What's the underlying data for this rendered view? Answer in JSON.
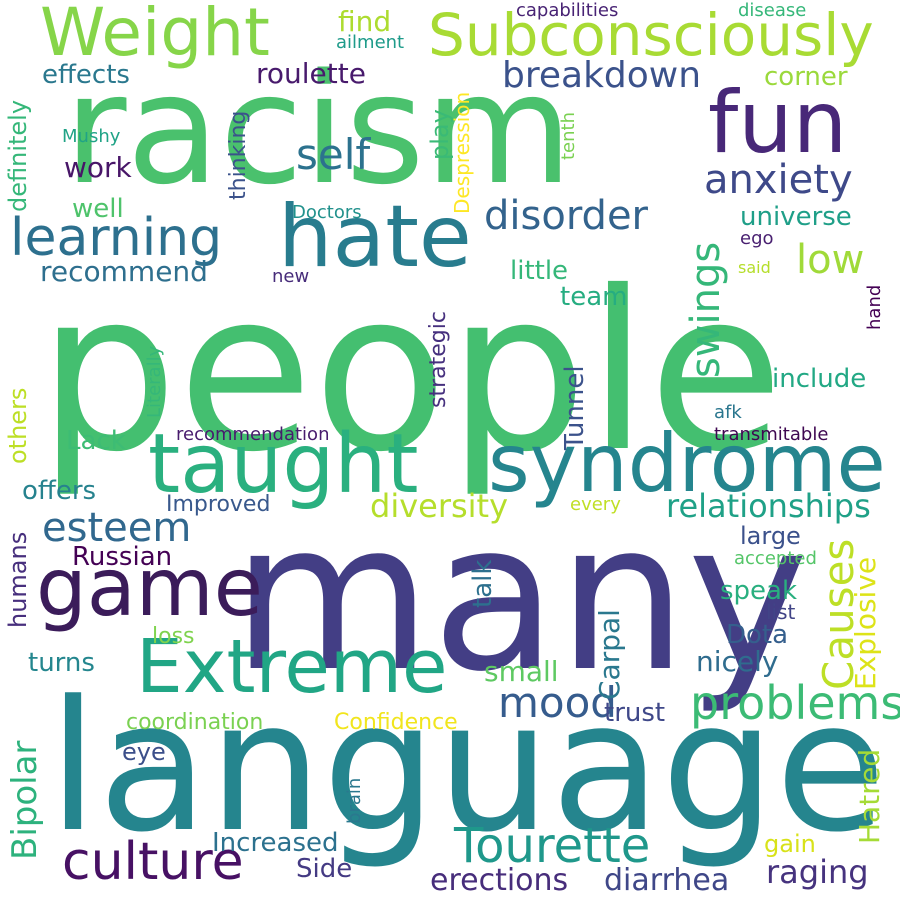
{
  "words": [
    {
      "id": "people",
      "text": "people",
      "color": "#44bf70"
    },
    {
      "id": "many",
      "text": "many",
      "color": "#433e85"
    },
    {
      "id": "language",
      "text": "language",
      "color": "#25858e"
    },
    {
      "id": "racism",
      "text": "racism",
      "color": "#4ac16d"
    },
    {
      "id": "syndrome",
      "text": "syndrome",
      "color": "#25858e"
    },
    {
      "id": "taught",
      "text": "taught",
      "color": "#2ab07f"
    },
    {
      "id": "hate",
      "text": "hate",
      "color": "#287c8e"
    },
    {
      "id": "fun",
      "text": "fun",
      "color": "#482878"
    },
    {
      "id": "game",
      "text": "game",
      "color": "#3b1c5a"
    },
    {
      "id": "extreme",
      "text": "Extreme",
      "color": "#21a685"
    },
    {
      "id": "weight",
      "text": "Weight",
      "color": "#86d549"
    },
    {
      "id": "subconsciously",
      "text": "Subconsciously",
      "color": "#a8db34"
    },
    {
      "id": "learning",
      "text": "learning",
      "color": "#2d708e"
    },
    {
      "id": "culture",
      "text": "culture",
      "color": "#471164"
    },
    {
      "id": "tourette",
      "text": "Tourette",
      "color": "#1f988b"
    },
    {
      "id": "problems",
      "text": "problems",
      "color": "#3cbb75"
    },
    {
      "id": "disorder",
      "text": "disorder",
      "color": "#33638d"
    },
    {
      "id": "anxiety",
      "text": "anxiety",
      "color": "#3e4989"
    },
    {
      "id": "breakdown",
      "text": "breakdown",
      "color": "#3b528b"
    },
    {
      "id": "self",
      "text": "self",
      "color": "#2c728e"
    },
    {
      "id": "esteem",
      "text": "esteem",
      "color": "#31688e"
    },
    {
      "id": "mood",
      "text": "mood",
      "color": "#365c8d"
    },
    {
      "id": "relationships",
      "text": "relationships",
      "color": "#1fa187"
    },
    {
      "id": "diversity",
      "text": "diversity",
      "color": "#b5de2b"
    },
    {
      "id": "low",
      "text": "low",
      "color": "#a0da39"
    },
    {
      "id": "roulette",
      "text": "roulette",
      "color": "#481a6c"
    },
    {
      "id": "erections",
      "text": "erections",
      "color": "#472d7b"
    },
    {
      "id": "diarrhea",
      "text": "diarrhea",
      "color": "#3f4788"
    },
    {
      "id": "raging",
      "text": "raging",
      "color": "#46337e"
    },
    {
      "id": "russian",
      "text": "Russian",
      "color": "#440154"
    },
    {
      "id": "effects",
      "text": "effects",
      "color": "#2a788e"
    },
    {
      "id": "recommend",
      "text": "recommend",
      "color": "#2e6f8e"
    },
    {
      "id": "work",
      "text": "work",
      "color": "#481668"
    },
    {
      "id": "well",
      "text": "well",
      "color": "#4ec36b"
    },
    {
      "id": "find",
      "text": "find",
      "color": "#addc30"
    },
    {
      "id": "corner",
      "text": "corner",
      "color": "#9bd93c"
    },
    {
      "id": "universe",
      "text": "universe",
      "color": "#1f9f88"
    },
    {
      "id": "include",
      "text": "include",
      "color": "#22a884"
    },
    {
      "id": "little",
      "text": "little",
      "color": "#35b779"
    },
    {
      "id": "team",
      "text": "team",
      "color": "#26ad81"
    },
    {
      "id": "offers",
      "text": "offers",
      "color": "#26828e"
    },
    {
      "id": "lack",
      "text": "Lack",
      "color": "#3dbc74"
    },
    {
      "id": "small",
      "text": "small",
      "color": "#5ec962"
    },
    {
      "id": "dota",
      "text": "Dota",
      "color": "#355f8d"
    },
    {
      "id": "nicely",
      "text": "nicely",
      "color": "#2f6c8e"
    },
    {
      "id": "speak",
      "text": "speak",
      "color": "#29af7f"
    },
    {
      "id": "trust",
      "text": "trust",
      "color": "#3f4889"
    },
    {
      "id": "turns",
      "text": "turns",
      "color": "#24868e"
    },
    {
      "id": "increased",
      "text": "Increased",
      "color": "#2c718e"
    },
    {
      "id": "side",
      "text": "Side",
      "color": "#443a83"
    },
    {
      "id": "large",
      "text": "large",
      "color": "#3b518b"
    },
    {
      "id": "eye",
      "text": "eye",
      "color": "#3c4f8a"
    },
    {
      "id": "gain",
      "text": "gain",
      "color": "#d8e219"
    },
    {
      "id": "improved",
      "text": "Improved",
      "color": "#38588c"
    },
    {
      "id": "coordination",
      "text": "coordination",
      "color": "#7ad151"
    },
    {
      "id": "confidence",
      "text": "Confidence",
      "color": "#f1e51d"
    },
    {
      "id": "loss",
      "text": "loss",
      "color": "#7fd34e"
    },
    {
      "id": "list",
      "text": "list",
      "color": "#414487"
    },
    {
      "id": "accepted",
      "text": "accepted",
      "color": "#54c568"
    },
    {
      "id": "every",
      "text": "every",
      "color": "#c0df25"
    },
    {
      "id": "afk",
      "text": "afk",
      "color": "#2a768e"
    },
    {
      "id": "transmitable",
      "text": "transmitable",
      "color": "#3e0751"
    },
    {
      "id": "recommendation",
      "text": "recommendation",
      "color": "#481b6d"
    },
    {
      "id": "capabilities",
      "text": "capabilities",
      "color": "#482374"
    },
    {
      "id": "disease",
      "text": "disease",
      "color": "#35b779"
    },
    {
      "id": "ailment",
      "text": "ailment",
      "color": "#1e9b8a"
    },
    {
      "id": "mushy",
      "text": "Mushy",
      "color": "#20a386"
    },
    {
      "id": "doctors",
      "text": "Doctors",
      "color": "#21918c"
    },
    {
      "id": "ego",
      "text": "ego",
      "color": "#481f70"
    },
    {
      "id": "said",
      "text": "said",
      "color": "#b5de2b"
    },
    {
      "id": "new",
      "text": "new",
      "color": "#472c7a"
    },
    {
      "id": "swings",
      "text": "swings",
      "color": "#35b779"
    },
    {
      "id": "causes",
      "text": "Causes",
      "color": "#bddf26"
    },
    {
      "id": "explosive",
      "text": "Explosive",
      "color": "#dde318"
    },
    {
      "id": "hatred",
      "text": "Hatred",
      "color": "#a5db36"
    },
    {
      "id": "carpal",
      "text": "Carpal",
      "color": "#2a788e"
    },
    {
      "id": "talk",
      "text": "talk",
      "color": "#2d708e"
    },
    {
      "id": "tunnel",
      "text": "Tunnel",
      "color": "#3b528b"
    },
    {
      "id": "strategic",
      "text": "strategic",
      "color": "#46307e"
    },
    {
      "id": "play",
      "text": "play",
      "color": "#3aba76"
    },
    {
      "id": "despression",
      "text": "Despression",
      "color": "#fde725"
    },
    {
      "id": "tenth",
      "text": "tenth",
      "color": "#7ad151"
    },
    {
      "id": "thinking",
      "text": "thinking",
      "color": "#3b528b"
    },
    {
      "id": "definitely",
      "text": "definitely",
      "color": "#35b779"
    },
    {
      "id": "others",
      "text": "others",
      "color": "#bddf26"
    },
    {
      "id": "bipolar",
      "text": "Bipolar",
      "color": "#2db27d"
    },
    {
      "id": "humans",
      "text": "humans",
      "color": "#472f7d"
    },
    {
      "id": "literally",
      "text": "Literally",
      "color": "#35b779"
    },
    {
      "id": "brain",
      "text": "brain",
      "color": "#2a788e"
    },
    {
      "id": "hand",
      "text": "hand",
      "color": "#440154"
    }
  ]
}
